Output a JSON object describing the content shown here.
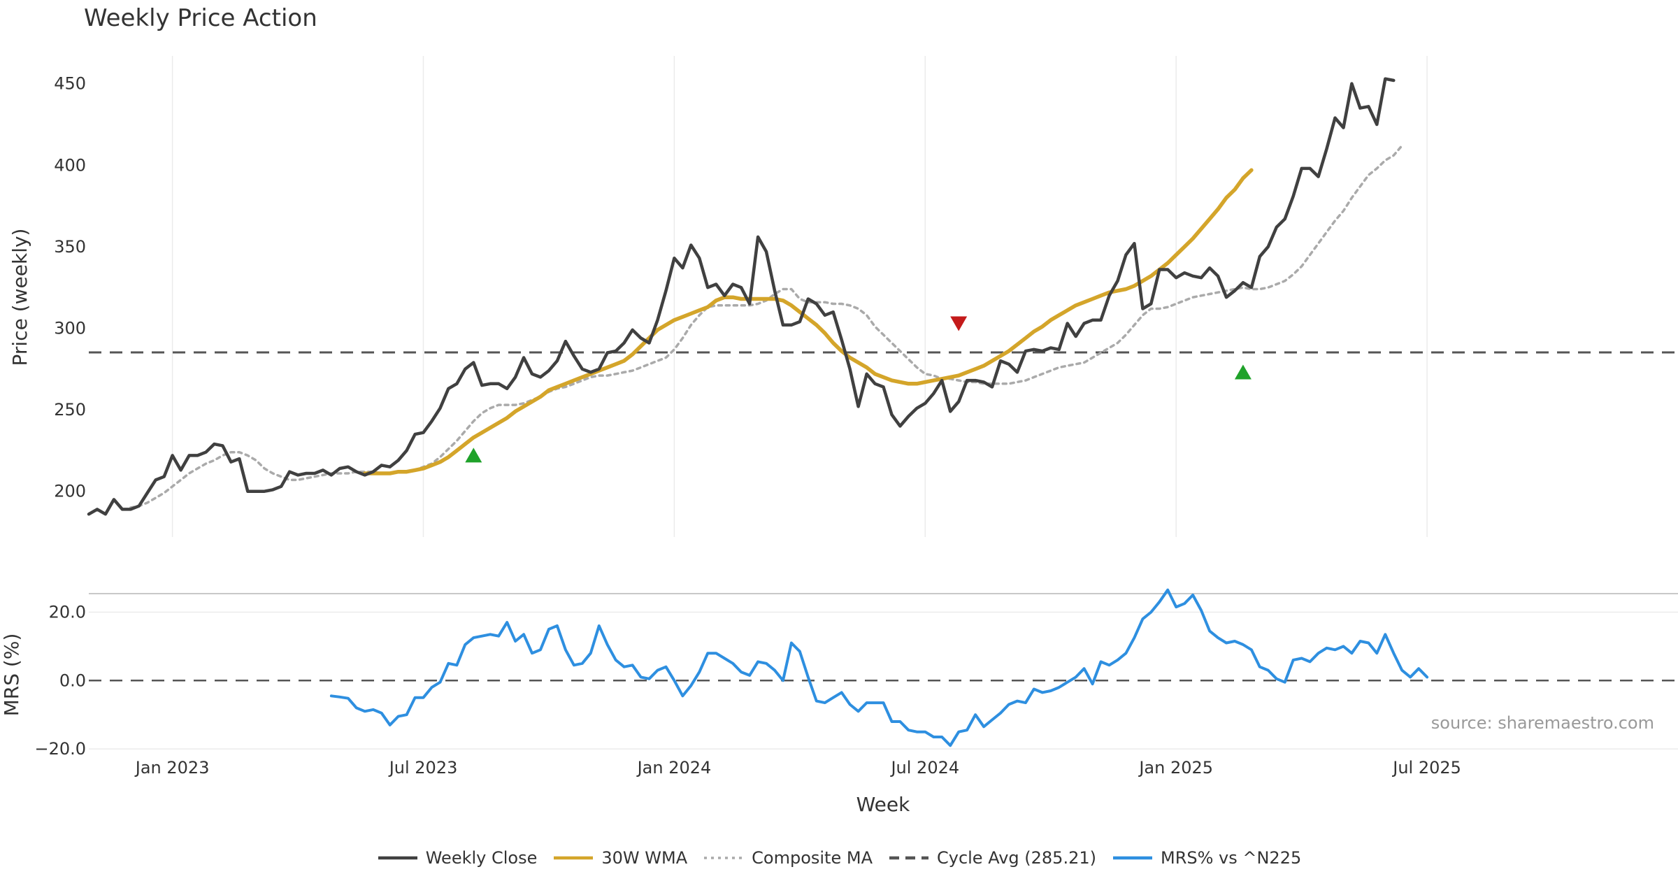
{
  "title": "Weekly Price Action",
  "watermark": "source: sharemaestro.com",
  "colors": {
    "close": "#404040",
    "wma": "#D4A52A",
    "composite": "#AAAAAA",
    "cycle": "#555555",
    "mrs": "#2E8FE0",
    "buy": "#1FA22A",
    "sell": "#C41A1A"
  },
  "legend": [
    {
      "key": "close",
      "label": "Weekly Close",
      "style": "solid"
    },
    {
      "key": "wma",
      "label": "30W WMA",
      "style": "solid"
    },
    {
      "key": "composite",
      "label": "Composite MA",
      "style": "dotted"
    },
    {
      "key": "cycle",
      "label": "Cycle Avg (285.21)",
      "style": "dashed"
    },
    {
      "key": "mrs",
      "label": "MRS% vs ^N225",
      "style": "solid"
    }
  ],
  "chart_data": [
    {
      "type": "line",
      "title": "Weekly Price Action",
      "xlabel": "",
      "ylabel": "Price (weekly)",
      "ylim": [
        172,
        467
      ],
      "x_index_range": [
        0,
        190
      ],
      "x_ticks": [
        {
          "index": 10,
          "label": "Jan 2023"
        },
        {
          "index": 40,
          "label": "Jul 2023"
        },
        {
          "index": 70,
          "label": "Jan 2024"
        },
        {
          "index": 100,
          "label": "Jul 2024"
        },
        {
          "index": 130,
          "label": "Jan 2025"
        },
        {
          "index": 160,
          "label": "Jul 2025"
        }
      ],
      "y_ticks": [
        200,
        250,
        300,
        350,
        400,
        450
      ],
      "grid": "vertical",
      "cycle_avg": 285.21,
      "series": [
        {
          "name": "Weekly Close",
          "start_index": 0,
          "values": [
            186,
            189,
            186,
            195,
            189,
            189,
            191,
            199,
            207,
            209,
            222,
            213,
            222,
            222,
            224,
            229,
            228,
            218,
            220,
            200,
            200,
            200,
            201,
            203,
            212,
            210,
            211,
            211,
            213,
            210,
            214,
            215,
            212,
            210,
            212,
            216,
            215,
            219,
            225,
            235,
            236,
            243,
            251,
            263,
            266,
            275,
            279,
            265,
            266,
            266,
            263,
            270,
            282,
            272,
            270,
            274,
            280,
            292,
            283,
            275,
            273,
            275,
            285,
            286,
            291,
            299,
            294,
            291,
            305,
            323,
            343,
            337,
            351,
            343,
            325,
            327,
            320,
            327,
            325,
            315,
            356,
            347,
            323,
            302,
            302,
            304,
            318,
            315,
            308,
            310,
            293,
            275,
            252,
            272,
            266,
            264,
            247,
            240,
            246,
            251,
            254,
            260,
            268,
            249,
            255,
            268,
            268,
            267,
            264,
            280,
            278,
            273,
            286,
            287,
            286,
            288,
            287,
            303,
            295,
            303,
            305,
            305,
            320,
            329,
            345,
            352,
            312,
            315,
            336,
            336,
            331,
            334,
            332,
            331,
            337,
            332,
            319,
            323,
            328,
            325,
            344,
            350,
            362,
            367,
            381,
            398,
            398,
            393,
            410,
            429,
            423,
            450,
            435,
            436,
            425,
            453,
            452
          ]
        },
        {
          "name": "30W WMA",
          "start_index": 33,
          "values": [
            211,
            211,
            211,
            211,
            212,
            212,
            213,
            214,
            216,
            218,
            221,
            225,
            229,
            233,
            236,
            239,
            242,
            245,
            249,
            252,
            255,
            258,
            262,
            264,
            266,
            268,
            270,
            272,
            274,
            276,
            278,
            280,
            284,
            289,
            294,
            299,
            302,
            305,
            307,
            309,
            311,
            313,
            317,
            319,
            319,
            318,
            318,
            318,
            318,
            318,
            317,
            314,
            310,
            306,
            302,
            297,
            291,
            286,
            282,
            279,
            276,
            272,
            270,
            268,
            267,
            266,
            266,
            267,
            268,
            269,
            270,
            271,
            273,
            275,
            277,
            280,
            283,
            286,
            290,
            294,
            298,
            301,
            305,
            308,
            311,
            314,
            316,
            318,
            320,
            322,
            323,
            324,
            326,
            329,
            332,
            336,
            340,
            345,
            350,
            355,
            361,
            367,
            373,
            380,
            385,
            392,
            397
          ]
        },
        {
          "name": "Composite MA",
          "start_index": 5,
          "values": [
            190,
            191,
            193,
            196,
            199,
            203,
            207,
            211,
            214,
            217,
            219,
            222,
            224,
            224,
            222,
            219,
            214,
            211,
            209,
            207,
            207,
            208,
            209,
            210,
            211,
            211,
            211,
            212,
            212,
            212,
            211,
            211,
            212,
            212,
            213,
            215,
            217,
            221,
            226,
            231,
            237,
            243,
            248,
            251,
            253,
            253,
            253,
            254,
            256,
            258,
            261,
            263,
            264,
            266,
            268,
            270,
            271,
            271,
            272,
            273,
            274,
            276,
            278,
            280,
            282,
            287,
            294,
            302,
            308,
            313,
            314,
            314,
            314,
            314,
            314,
            315,
            317,
            321,
            324,
            324,
            318,
            316,
            316,
            316,
            315,
            315,
            314,
            312,
            308,
            301,
            296,
            291,
            286,
            281,
            276,
            272,
            271,
            269,
            269,
            268,
            267,
            267,
            266,
            266,
            266,
            266,
            267,
            268,
            270,
            272,
            274,
            276,
            277,
            278,
            279,
            282,
            285,
            288,
            291,
            296,
            302,
            308,
            312,
            312,
            313,
            315,
            317,
            319,
            320,
            321,
            322,
            323,
            324,
            325,
            324,
            324,
            325,
            327,
            329,
            333,
            338,
            345,
            352,
            359,
            366,
            372,
            380,
            387,
            394,
            398,
            403,
            406,
            412
          ]
        },
        {
          "name": "Cycle Avg (285.21)",
          "start_index": 0,
          "values": [
            285.21,
            285.21
          ]
        }
      ],
      "markers": [
        {
          "type": "buy",
          "index": 46,
          "value": 222
        },
        {
          "type": "sell",
          "index": 104,
          "value": 303
        },
        {
          "type": "buy",
          "index": 138,
          "value": 273
        }
      ]
    },
    {
      "type": "line",
      "xlabel": "Week",
      "ylabel": "MRS (%)",
      "ylim": [
        -21,
        25
      ],
      "y_ticks": [
        {
          "value": 20,
          "label": "20.0"
        },
        {
          "value": 0,
          "label": "0.0"
        },
        {
          "value": -20,
          "label": "−20.0"
        }
      ],
      "zero_line": 0,
      "series": [
        {
          "name": "MRS% vs ^N225",
          "start_index": 29,
          "values": [
            -4.5,
            -4.8,
            -5.2,
            -8,
            -9,
            -8.5,
            -9.5,
            -13,
            -10.5,
            -10,
            -5,
            -5,
            -2,
            -0.5,
            5,
            4.5,
            10.5,
            12.5,
            13,
            13.5,
            13,
            17,
            11.5,
            13.5,
            8,
            9,
            15,
            16,
            9,
            4.5,
            5,
            8,
            16,
            10.5,
            6,
            4,
            4.5,
            1,
            0.5,
            3,
            4,
            0,
            -4.5,
            -1.5,
            2.5,
            8,
            8,
            6.5,
            5,
            2.5,
            1.5,
            5.5,
            5,
            3,
            0,
            11,
            8.5,
            1,
            -6,
            -6.5,
            -5,
            -3.5,
            -7,
            -9,
            -6.5,
            -6.5,
            -6.5,
            -12,
            -12,
            -14.5,
            -15,
            -15,
            -16.5,
            -16.5,
            -19,
            -15,
            -14.5,
            -10,
            -13.5,
            -11.5,
            -9.5,
            -7,
            -6,
            -6.5,
            -2.5,
            -3.5,
            -3,
            -2,
            -0.5,
            1,
            3.5,
            -1,
            5.5,
            4.5,
            6,
            8,
            12.5,
            18,
            20,
            23,
            26.5,
            21.5,
            22.5,
            25,
            20.5,
            14.5,
            12.5,
            11,
            11.5,
            10.5,
            9,
            4,
            3,
            0.5,
            -0.5,
            6,
            6.5,
            5.5,
            8,
            9.5,
            9,
            10,
            8,
            11.5,
            11,
            8,
            13.5,
            8,
            3,
            1,
            3.5,
            1
          ]
        }
      ]
    }
  ]
}
